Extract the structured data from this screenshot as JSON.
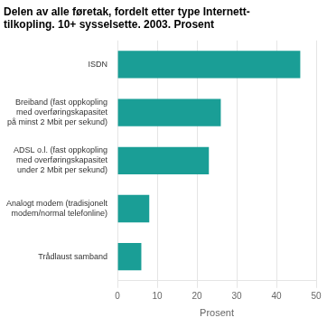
{
  "chart_data": {
    "type": "bar",
    "orientation": "horizontal",
    "title": "Delen av alle føretak, fordelt etter type Internett-\ntilkopling. 10+ sysselsette. 2003. Prosent",
    "categories": [
      "Trådlaust samband",
      "Analogt modem (tradisjonelt\nmodem/normal telefonline)",
      "ADSL o.l. (fast oppkopling\nmed overføringskapasitet\nunder 2 Mbit per sekund)",
      "Breiband (fast oppkopling\nmed overføringskapasitet\npå minst 2 Mbit per sekund)",
      "ISDN"
    ],
    "values": [
      6,
      8,
      23,
      26,
      46
    ],
    "color": "#1a9e96",
    "xlabel": "Prosent",
    "xlim": [
      0,
      50
    ],
    "xticks": [
      0,
      10,
      20,
      30,
      40,
      50
    ],
    "grid": true
  }
}
